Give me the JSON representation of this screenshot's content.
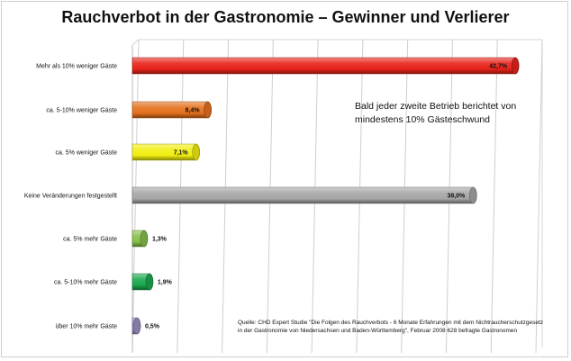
{
  "chart_data": {
    "type": "bar",
    "orientation": "horizontal",
    "title": "Rauchverbot in der Gastronomie – Gewinner und Verlierer",
    "categories": [
      "Mehr als 10% weniger Gäste",
      "ca. 5-10% weniger Gäste",
      "ca. 5% weniger Gäste",
      "Keine Veränderungen festgestellt",
      "ca. 5% mehr Gäste",
      "ca. 5-10% mehr Gäste",
      "über 10% mehr Gäste"
    ],
    "values": [
      42.7,
      8.4,
      7.1,
      38.0,
      1.3,
      1.9,
      0.5
    ],
    "value_labels": [
      "42,7%",
      "8,4%",
      "7,1%",
      "38,0%",
      "1,3%",
      "1,9%",
      "0,5%"
    ],
    "colors": [
      "#e8231a",
      "#e4701c",
      "#f2ee12",
      "#a6a6a6",
      "#86c04a",
      "#1ba84e",
      "#9e8fc4"
    ],
    "xlim": [
      0,
      45
    ],
    "grid": true,
    "legend": "none",
    "annotation": "Bald jeder zweite Betrieb berichtet von mindestens 10% Gästeschwund",
    "source": "Quelle: CHD Expert Studie \"Die Folgen des Rauchverbots - 6 Monate Erfahrungen mit dem Nichtraucherschutzgesetz in der Gastronomie von Niedersachsen und Baden-Württemberg\", Februar 2008 628 befragte Gastronomen"
  }
}
